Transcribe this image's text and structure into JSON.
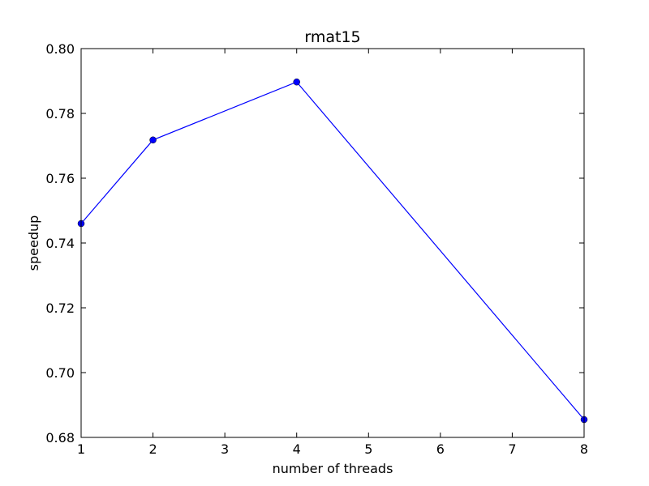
{
  "chart_data": {
    "type": "line",
    "title": "rmat15",
    "xlabel": "number of threads",
    "ylabel": "speedup",
    "xlim": [
      1,
      8
    ],
    "ylim": [
      0.68,
      0.8
    ],
    "xticks": [
      1,
      2,
      3,
      4,
      5,
      6,
      7,
      8
    ],
    "xtick_labels": [
      "1",
      "2",
      "3",
      "4",
      "5",
      "6",
      "7",
      "8"
    ],
    "yticks": [
      0.68,
      0.7,
      0.72,
      0.74,
      0.76,
      0.78,
      0.8
    ],
    "ytick_labels": [
      "0.68",
      "0.70",
      "0.72",
      "0.74",
      "0.76",
      "0.78",
      "0.80"
    ],
    "grid": false,
    "series": [
      {
        "color": "#0000ff",
        "marker": "circle",
        "x": [
          1,
          2,
          4,
          8
        ],
        "y": [
          0.746,
          0.7718,
          0.7897,
          0.6855
        ]
      }
    ]
  }
}
